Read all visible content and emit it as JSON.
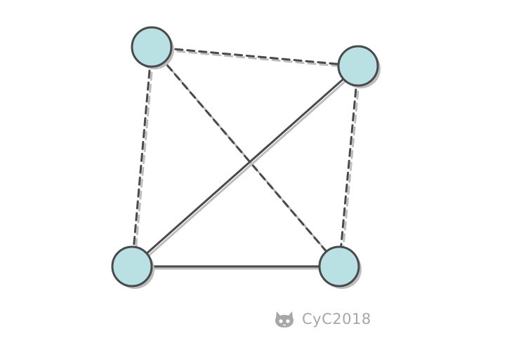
{
  "graph": {
    "nodes": [
      {
        "id": "A",
        "fill": "#b9e0e2"
      },
      {
        "id": "B",
        "fill": "#b9e0e2"
      },
      {
        "id": "C",
        "fill": "#b9e0e2"
      },
      {
        "id": "D",
        "fill": "#b9e0e2"
      }
    ],
    "edges": [
      {
        "from": "A",
        "to": "B",
        "style": "dashed"
      },
      {
        "from": "A",
        "to": "C",
        "style": "dashed"
      },
      {
        "from": "A",
        "to": "D",
        "style": "dashed"
      },
      {
        "from": "B",
        "to": "D",
        "style": "dashed"
      },
      {
        "from": "B",
        "to": "C",
        "style": "solid"
      },
      {
        "from": "C",
        "to": "D",
        "style": "solid"
      }
    ],
    "colors": {
      "stroke": "#4a4a4a",
      "shadow": "#bdbdbd",
      "node_fill": "#b9e0e2"
    }
  },
  "watermark": {
    "icon": "github-octocat-icon",
    "text": "CyC2018"
  }
}
